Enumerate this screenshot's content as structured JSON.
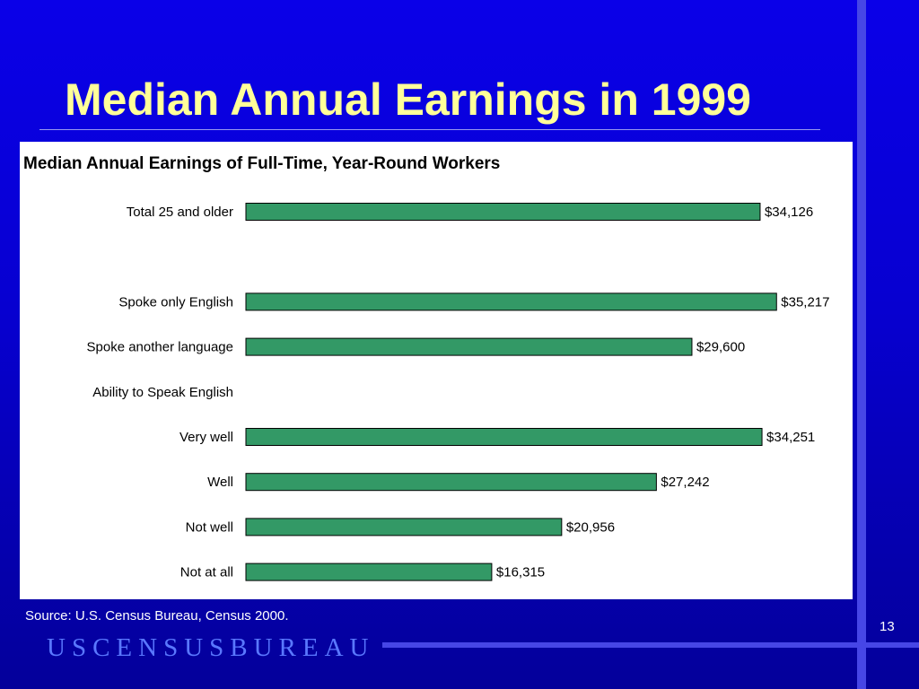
{
  "slide": {
    "title": "Median Annual Earnings in 1999",
    "source": "Source: U.S. Census Bureau, Census 2000.",
    "page_number": "13",
    "logo_text": "USCENSUSBUREAU"
  },
  "colors": {
    "background": "#0700d0",
    "title": "#ffff99",
    "bar": "#339966",
    "logo": "#5a78ff"
  },
  "chart_data": {
    "type": "bar",
    "orientation": "horizontal",
    "title": "Median Annual Earnings of Full-Time, Year-Round Workers",
    "categories": [
      "Total 25 and older",
      "",
      "Spoke only English",
      "Spoke another language",
      "Ability to Speak English",
      "Very well",
      "Well",
      "Not well",
      "Not at all"
    ],
    "values": [
      34126,
      null,
      35217,
      29600,
      null,
      34251,
      27242,
      20956,
      16315
    ],
    "value_labels": [
      "$34,126",
      "",
      "$35,217",
      "$29,600",
      "",
      "$34,251",
      "$27,242",
      "$20,956",
      "$16,315"
    ],
    "xlim": [
      0,
      38000
    ],
    "grid": false,
    "legend": "none"
  }
}
